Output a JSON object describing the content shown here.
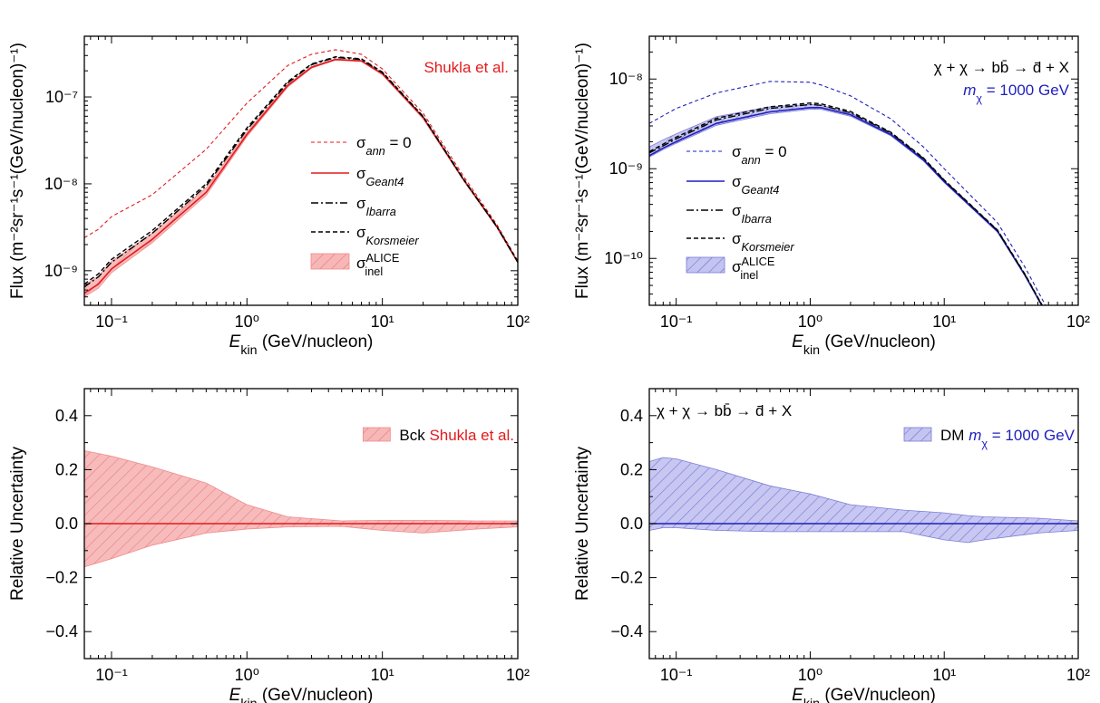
{
  "colors": {
    "bck": "#e41a1c",
    "bck_fill": "#f7b7b7",
    "dm": "#1f1fbf",
    "dm_fill": "#b9b9ee",
    "black": "#000000"
  },
  "chart_data": [
    {
      "id": "bck-flux",
      "type": "line",
      "xlabel_sym": "E",
      "xlabel_sub": "kin",
      "xlabel_rest": " (GeV/nucleon)",
      "ylabel": "Flux (m⁻²sr⁻¹s⁻¹(GeV/nucleon)⁻¹)",
      "xscale": "log",
      "yscale": "log",
      "xlim": [
        0.063,
        100
      ],
      "ylim": [
        4e-10,
        5e-07
      ],
      "x_ticks": [
        0.1,
        1,
        10,
        100
      ],
      "x_tick_labels": [
        "10⁻¹",
        "10⁰",
        "10¹",
        "10²"
      ],
      "y_ticks": [
        1e-09,
        1e-08,
        1e-07
      ],
      "y_tick_labels": [
        "10⁻⁹",
        "10⁻⁸",
        "10⁻⁷"
      ],
      "annotations": [
        {
          "text": "Shukla et al.",
          "color": "bck",
          "loc": "top-right"
        }
      ],
      "legend": {
        "placement": "center-right",
        "entries": [
          {
            "sym": "σ",
            "sub": "ann",
            "suffix": " = 0",
            "style": "thin-dashed",
            "color": "bck"
          },
          {
            "sym": "σ",
            "sub": "Geant4",
            "suffix": "",
            "style": "solid",
            "color": "bck"
          },
          {
            "sym": "σ",
            "sub": "Ibarra",
            "suffix": "",
            "style": "dashdot",
            "color": "black"
          },
          {
            "sym": "σ",
            "sub": "Korsmeier",
            "suffix": "",
            "style": "dashed",
            "color": "black"
          },
          {
            "sym": "σ",
            "sub": "inel",
            "sup": "ALICE",
            "suffix": "",
            "style": "band",
            "color": "bck"
          }
        ]
      },
      "x": [
        0.063,
        0.08,
        0.1,
        0.2,
        0.5,
        1,
        2,
        3,
        4.5,
        7,
        10,
        20,
        40,
        70,
        100
      ],
      "series": [
        {
          "key": "ann0",
          "style": "thin-dashed",
          "color": "bck",
          "values": [
            2.4e-09,
            3e-09,
            4.2e-09,
            7.5e-09,
            2.5e-08,
            8.5e-08,
            2.3e-07,
            3.1e-07,
            3.5e-07,
            3.1e-07,
            2.1e-07,
            6.5e-08,
            1.2e-08,
            3.4e-09,
            1.3e-09
          ]
        },
        {
          "key": "geant4",
          "style": "solid",
          "color": "bck",
          "values": [
            5.5e-10,
            7e-10,
            1.05e-09,
            2.3e-09,
            8e-09,
            3.7e-08,
            1.35e-07,
            2.2e-07,
            2.7e-07,
            2.6e-07,
            1.85e-07,
            5.8e-08,
            1.1e-08,
            3.2e-09,
            1.25e-09
          ]
        },
        {
          "key": "ibarra",
          "style": "dashdot",
          "color": "black",
          "values": [
            6.5e-10,
            8.5e-10,
            1.25e-09,
            2.7e-09,
            9.5e-09,
            4.2e-08,
            1.45e-07,
            2.35e-07,
            2.85e-07,
            2.7e-07,
            1.9e-07,
            5.9e-08,
            1.1e-08,
            3.2e-09,
            1.25e-09
          ]
        },
        {
          "key": "korsmeier",
          "style": "dashed",
          "color": "black",
          "values": [
            7e-10,
            9.2e-10,
            1.35e-09,
            2.9e-09,
            1e-08,
            4.4e-08,
            1.5e-07,
            2.4e-07,
            2.9e-07,
            2.75e-07,
            1.93e-07,
            6e-08,
            1.12e-08,
            3.25e-09,
            1.27e-09
          ]
        }
      ],
      "band": {
        "color": "bck",
        "lower": [
          5e-10,
          6.3e-10,
          9.5e-10,
          2.1e-09,
          7.4e-09,
          3.5e-08,
          1.3e-07,
          2.15e-07,
          2.65e-07,
          2.55e-07,
          1.8e-07,
          5.6e-08,
          1.07e-08,
          3.15e-09,
          1.23e-09
        ],
        "upper": [
          6.8e-10,
          8.6e-10,
          1.28e-09,
          2.7e-09,
          9e-09,
          3.95e-08,
          1.4e-07,
          2.25e-07,
          2.75e-07,
          2.63e-07,
          1.87e-07,
          5.9e-08,
          1.12e-08,
          3.25e-09,
          1.27e-09
        ]
      }
    },
    {
      "id": "dm-flux",
      "type": "line",
      "xlabel_sym": "E",
      "xlabel_sub": "kin",
      "xlabel_rest": " (GeV/nucleon)",
      "ylabel": "Flux (m⁻²sr⁻¹s⁻¹(GeV/nucleon)⁻¹)",
      "xscale": "log",
      "yscale": "log",
      "xlim": [
        0.063,
        100
      ],
      "ylim": [
        3e-11,
        3e-08
      ],
      "x_ticks": [
        0.1,
        1,
        10,
        100
      ],
      "x_tick_labels": [
        "10⁻¹",
        "10⁰",
        "10¹",
        "10²"
      ],
      "y_ticks": [
        1e-10,
        1e-09,
        1e-08
      ],
      "y_tick_labels": [
        "10⁻¹⁰",
        "10⁻⁹",
        "10⁻⁸"
      ],
      "annotations": [
        {
          "text": "χ + χ → bb̄ → d̄ + X",
          "color": "black",
          "loc": "top-right"
        },
        {
          "text_sym": "m",
          "text_sub": "χ",
          "text_rest": " = 1000 GeV",
          "color": "dm",
          "loc": "top-right-2"
        }
      ],
      "legend": {
        "placement": "center-left",
        "entries": [
          {
            "sym": "σ",
            "sub": "ann",
            "suffix": " = 0",
            "style": "thin-dashed",
            "color": "dm"
          },
          {
            "sym": "σ",
            "sub": "Geant4",
            "suffix": "",
            "style": "solid",
            "color": "dm"
          },
          {
            "sym": "σ",
            "sub": "Ibarra",
            "suffix": "",
            "style": "dashdot",
            "color": "black"
          },
          {
            "sym": "σ",
            "sub": "Korsmeier",
            "suffix": "",
            "style": "dashed",
            "color": "black"
          },
          {
            "sym": "σ",
            "sub": "inel",
            "sup": "ALICE",
            "suffix": "",
            "style": "band",
            "color": "dm"
          }
        ]
      },
      "x": [
        0.063,
        0.08,
        0.1,
        0.2,
        0.5,
        1,
        1.2,
        2,
        4,
        7,
        10,
        25,
        40,
        60
      ],
      "series": [
        {
          "key": "ann0",
          "style": "thin-dashed",
          "color": "dm",
          "values": [
            3.2e-09,
            3.9e-09,
            4.7e-09,
            7e-09,
            9.4e-09,
            9.2e-09,
            8.6e-09,
            6.5e-09,
            3.6e-09,
            1.75e-09,
            1e-09,
            2.5e-10,
            8e-11,
            2.6e-11
          ]
        },
        {
          "key": "geant4",
          "style": "solid",
          "color": "dm",
          "values": [
            1.4e-09,
            1.7e-09,
            2e-09,
            3.2e-09,
            4.3e-09,
            4.8e-09,
            4.8e-09,
            4e-09,
            2.4e-09,
            1.25e-09,
            7.2e-10,
            2e-10,
            6.5e-11,
            2.2e-11
          ]
        },
        {
          "key": "ibarra",
          "style": "dashdot",
          "color": "black",
          "values": [
            1.5e-09,
            1.8e-09,
            2.15e-09,
            3.5e-09,
            4.7e-09,
            5.2e-09,
            5.1e-09,
            4.2e-09,
            2.5e-09,
            1.3e-09,
            7.4e-10,
            2.05e-10,
            6.6e-11,
            2.2e-11
          ]
        },
        {
          "key": "korsmeier",
          "style": "dashed",
          "color": "black",
          "values": [
            1.55e-09,
            1.88e-09,
            2.25e-09,
            3.65e-09,
            4.9e-09,
            5.4e-09,
            5.3e-09,
            4.35e-09,
            2.55e-09,
            1.32e-09,
            7.5e-10,
            2.07e-10,
            6.7e-11,
            2.25e-11
          ]
        }
      ],
      "band": {
        "color": "dm",
        "lower": [
          1.35e-09,
          1.63e-09,
          1.92e-09,
          3.05e-09,
          4.1e-09,
          4.6e-09,
          4.6e-09,
          3.85e-09,
          2.33e-09,
          1.22e-09,
          7e-10,
          1.96e-10,
          6.4e-11,
          2.15e-11
        ],
        "upper": [
          1.75e-09,
          2.1e-09,
          2.45e-09,
          3.8e-09,
          4.9e-09,
          5.2e-09,
          5.1e-09,
          4.2e-09,
          2.48e-09,
          1.29e-09,
          7.35e-10,
          2.04e-10,
          6.6e-11,
          2.22e-11
        ]
      }
    },
    {
      "id": "bck-unc",
      "type": "area",
      "xlabel_sym": "E",
      "xlabel_sub": "kin",
      "xlabel_rest": " (GeV/nucleon)",
      "ylabel": "Relative Uncertainty",
      "xscale": "log",
      "yscale": "linear",
      "xlim": [
        0.063,
        100
      ],
      "ylim": [
        -0.5,
        0.5
      ],
      "x_ticks": [
        0.1,
        1,
        10,
        100
      ],
      "x_tick_labels": [
        "10⁻¹",
        "10⁰",
        "10¹",
        "10²"
      ],
      "y_ticks": [
        -0.4,
        -0.2,
        0.0,
        0.2,
        0.4
      ],
      "y_tick_labels": [
        "−0.4",
        "−0.2",
        "0.0",
        "0.2",
        "0.4"
      ],
      "legend": {
        "placement": "top-right",
        "entries": [
          {
            "text": "Bck",
            "text2": "Shukla et al.",
            "text2_color": "bck",
            "style": "band",
            "color": "bck"
          }
        ]
      },
      "x": [
        0.063,
        0.1,
        0.2,
        0.5,
        1,
        2,
        5,
        10,
        20,
        50,
        100
      ],
      "zero_line_color": "bck",
      "band": {
        "color": "bck",
        "upper": [
          0.27,
          0.25,
          0.21,
          0.15,
          0.07,
          0.025,
          0.01,
          0.012,
          0.012,
          0.01,
          0.01
        ],
        "lower": [
          -0.16,
          -0.13,
          -0.08,
          -0.035,
          -0.02,
          -0.012,
          -0.01,
          -0.025,
          -0.035,
          -0.02,
          -0.012
        ]
      }
    },
    {
      "id": "dm-unc",
      "type": "area",
      "xlabel_sym": "E",
      "xlabel_sub": "kin",
      "xlabel_rest": " (GeV/nucleon)",
      "ylabel": "Relative Uncertainty",
      "xscale": "log",
      "yscale": "linear",
      "xlim": [
        0.063,
        100
      ],
      "ylim": [
        -0.5,
        0.5
      ],
      "x_ticks": [
        0.1,
        1,
        10,
        100
      ],
      "x_tick_labels": [
        "10⁻¹",
        "10⁰",
        "10¹",
        "10²"
      ],
      "y_ticks": [
        -0.4,
        -0.2,
        0.0,
        0.2,
        0.4
      ],
      "y_tick_labels": [
        "−0.4",
        "−0.2",
        "0.0",
        "0.2",
        "0.4"
      ],
      "annotations": [
        {
          "text": "χ + χ → bb̄ → d̄ + X",
          "color": "black",
          "loc": "top-left"
        }
      ],
      "legend": {
        "placement": "top-right",
        "entries": [
          {
            "text": "DM",
            "text2_sym": "m",
            "text2_sub": "χ",
            "text2_rest": " = 1000 GeV",
            "text2_color": "dm",
            "style": "band",
            "color": "dm"
          }
        ]
      },
      "x": [
        0.063,
        0.08,
        0.1,
        0.2,
        0.5,
        1,
        2,
        5,
        10,
        15,
        20,
        50,
        100
      ],
      "zero_line_color": "dm",
      "band": {
        "color": "dm",
        "upper": [
          0.23,
          0.245,
          0.24,
          0.2,
          0.14,
          0.11,
          0.07,
          0.05,
          0.04,
          0.03,
          0.025,
          0.02,
          0.01
        ],
        "lower": [
          -0.025,
          -0.015,
          -0.015,
          -0.025,
          -0.03,
          -0.03,
          -0.03,
          -0.03,
          -0.06,
          -0.07,
          -0.06,
          -0.035,
          -0.025
        ]
      }
    }
  ]
}
